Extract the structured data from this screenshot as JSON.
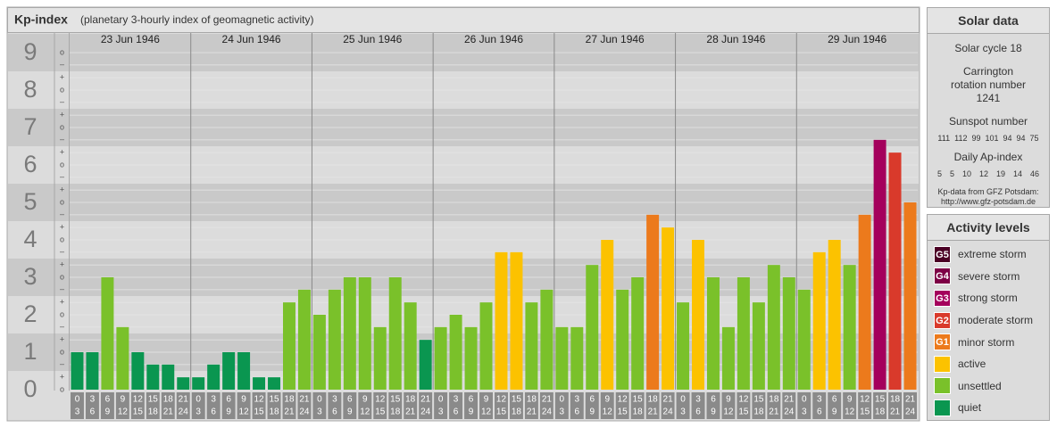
{
  "chart_data": {
    "type": "bar",
    "title": "Kp-index",
    "subtitle": "(planetary 3-hourly index of geomagnetic activity)",
    "days": [
      "23 Jun 1946",
      "24 Jun 1946",
      "25 Jun 1946",
      "26 Jun 1946",
      "27 Jun 1946",
      "28 Jun 1946",
      "29 Jun 1946"
    ],
    "slots": [
      [
        "0",
        "3"
      ],
      [
        "3",
        "6"
      ],
      [
        "6",
        "9"
      ],
      [
        "9",
        "12"
      ],
      [
        "12",
        "15"
      ],
      [
        "15",
        "18"
      ],
      [
        "18",
        "21"
      ],
      [
        "21",
        "24"
      ]
    ],
    "values": [
      1,
      1,
      3,
      1.67,
      1,
      0.67,
      0.67,
      0.33,
      0.33,
      0.67,
      1,
      1,
      0.33,
      0.33,
      2.33,
      2.67,
      2,
      2.67,
      3,
      3,
      1.67,
      3,
      2.33,
      1.33,
      1.67,
      2,
      1.67,
      2.33,
      3.67,
      3.67,
      2.33,
      2.67,
      1.67,
      1.67,
      3.33,
      4,
      2.67,
      3,
      4.67,
      4.33,
      2.33,
      4,
      3,
      1.67,
      3,
      2.33,
      3.33,
      3,
      2.67,
      3.67,
      4,
      3.33,
      4.67,
      6.67,
      6.33,
      5
    ],
    "colors": [
      "#0a9650",
      "#0a9650",
      "#7ac12a",
      "#7ac12a",
      "#0a9650",
      "#0a9650",
      "#0a9650",
      "#0a9650",
      "#0a9650",
      "#0a9650",
      "#0a9650",
      "#0a9650",
      "#0a9650",
      "#0a9650",
      "#7ac12a",
      "#7ac12a",
      "#7ac12a",
      "#7ac12a",
      "#7ac12a",
      "#7ac12a",
      "#7ac12a",
      "#7ac12a",
      "#7ac12a",
      "#0a9650",
      "#7ac12a",
      "#7ac12a",
      "#7ac12a",
      "#7ac12a",
      "#fcc200",
      "#fcc200",
      "#7ac12a",
      "#7ac12a",
      "#7ac12a",
      "#7ac12a",
      "#7ac12a",
      "#fcc200",
      "#7ac12a",
      "#7ac12a",
      "#ec7a1c",
      "#fcc200",
      "#7ac12a",
      "#fcc200",
      "#7ac12a",
      "#7ac12a",
      "#7ac12a",
      "#7ac12a",
      "#7ac12a",
      "#7ac12a",
      "#7ac12a",
      "#fcc200",
      "#fcc200",
      "#7ac12a",
      "#ec7a1c",
      "#a4005c",
      "#d93a2b",
      "#ec7a1c"
    ],
    "ylim": [
      0,
      9.5
    ],
    "yticks": [
      0,
      1,
      2,
      3,
      4,
      5,
      6,
      7,
      8,
      9
    ],
    "minor_ticks": [
      {
        "value": 0,
        "label": "o"
      },
      {
        "value": 0.33,
        "label": "+"
      },
      {
        "value": 0.67,
        "label": "–"
      },
      {
        "value": 1,
        "label": "o"
      },
      {
        "value": 1.33,
        "label": "+"
      },
      {
        "value": 1.67,
        "label": "–"
      },
      {
        "value": 2,
        "label": "o"
      },
      {
        "value": 2.33,
        "label": "+"
      },
      {
        "value": 2.67,
        "label": "–"
      },
      {
        "value": 3,
        "label": "o"
      },
      {
        "value": 3.33,
        "label": "+"
      },
      {
        "value": 3.67,
        "label": "–"
      },
      {
        "value": 4,
        "label": "o"
      },
      {
        "value": 4.33,
        "label": "+"
      },
      {
        "value": 4.67,
        "label": "–"
      },
      {
        "value": 5,
        "label": "o"
      },
      {
        "value": 5.33,
        "label": "+"
      },
      {
        "value": 5.67,
        "label": "–"
      },
      {
        "value": 6,
        "label": "o"
      },
      {
        "value": 6.33,
        "label": "+"
      },
      {
        "value": 6.67,
        "label": "–"
      },
      {
        "value": 7,
        "label": "o"
      },
      {
        "value": 7.33,
        "label": "+"
      },
      {
        "value": 7.67,
        "label": "–"
      },
      {
        "value": 8,
        "label": "o"
      },
      {
        "value": 8.33,
        "label": "+"
      },
      {
        "value": 8.67,
        "label": "–"
      },
      {
        "value": 9,
        "label": "o"
      }
    ],
    "grid": true
  },
  "solar_data": {
    "title": "Solar data",
    "solar_cycle": "Solar cycle 18",
    "carrington": "Carrington rotation number 1241",
    "sunspot_title": "Sunspot number",
    "sunspot": [
      111,
      112,
      99,
      101,
      94,
      94,
      75
    ],
    "ap_title": "Daily Ap-index",
    "ap": [
      5,
      5,
      10,
      12,
      19,
      14,
      46
    ],
    "source": "Kp-data from GFZ Potsdam:",
    "url": "http://www.gfz-potsdam.de"
  },
  "legend": {
    "title": "Activity levels",
    "items": [
      {
        "badge": "G5",
        "name": "extreme storm",
        "color": "#4a0024"
      },
      {
        "badge": "G4",
        "name": "severe storm",
        "color": "#7d0045"
      },
      {
        "badge": "G3",
        "name": "strong storm",
        "color": "#a4005c"
      },
      {
        "badge": "G2",
        "name": "moderate storm",
        "color": "#d93a2b"
      },
      {
        "badge": "G1",
        "name": "minor storm",
        "color": "#ec7a1c"
      },
      {
        "name": "active",
        "color": "#fcc200"
      },
      {
        "name": "unsettled",
        "color": "#7ac12a"
      },
      {
        "name": "quiet",
        "color": "#0a9650"
      }
    ]
  }
}
